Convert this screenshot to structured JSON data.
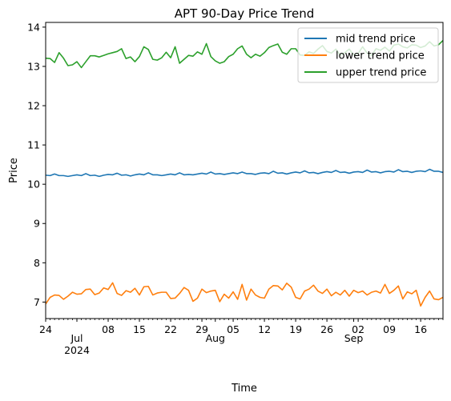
{
  "chart_data": {
    "type": "line",
    "title": "APT 90-Day Price Trend",
    "xlabel": "Time",
    "ylabel": "Price",
    "x_range": [
      "2024-06-24",
      "2024-09-21"
    ],
    "ylim": [
      6.58,
      14.12
    ],
    "grid": false,
    "legend_position": "top-right",
    "y_ticks": [
      7,
      8,
      9,
      10,
      11,
      12,
      13,
      14
    ],
    "x_ticks": [
      {
        "date": "2024-06-24",
        "label": "24",
        "sublabel": ""
      },
      {
        "date": "2024-07-01",
        "label": "",
        "sublabel": "Jul\n2024"
      },
      {
        "date": "2024-07-08",
        "label": "08",
        "sublabel": ""
      },
      {
        "date": "2024-07-15",
        "label": "15",
        "sublabel": ""
      },
      {
        "date": "2024-07-22",
        "label": "22",
        "sublabel": ""
      },
      {
        "date": "2024-07-29",
        "label": "29",
        "sublabel": ""
      },
      {
        "date": "2024-08-01",
        "label": "",
        "sublabel": "Aug"
      },
      {
        "date": "2024-08-05",
        "label": "05",
        "sublabel": ""
      },
      {
        "date": "2024-08-12",
        "label": "12",
        "sublabel": ""
      },
      {
        "date": "2024-08-19",
        "label": "19",
        "sublabel": ""
      },
      {
        "date": "2024-08-26",
        "label": "26",
        "sublabel": ""
      },
      {
        "date": "2024-09-01",
        "label": "",
        "sublabel": "Sep"
      },
      {
        "date": "2024-09-02",
        "label": "02",
        "sublabel": ""
      },
      {
        "date": "2024-09-09",
        "label": "09",
        "sublabel": ""
      },
      {
        "date": "2024-09-16",
        "label": "16",
        "sublabel": ""
      }
    ],
    "start_date": "2024-06-24",
    "series": [
      {
        "name": "mid trend price",
        "color": "#1f77b4",
        "values": [
          10.23,
          10.22,
          10.26,
          10.22,
          10.22,
          10.2,
          10.22,
          10.24,
          10.22,
          10.27,
          10.22,
          10.23,
          10.2,
          10.23,
          10.25,
          10.24,
          10.28,
          10.23,
          10.24,
          10.21,
          10.24,
          10.26,
          10.24,
          10.29,
          10.24,
          10.24,
          10.22,
          10.24,
          10.26,
          10.24,
          10.29,
          10.24,
          10.25,
          10.24,
          10.26,
          10.28,
          10.26,
          10.31,
          10.26,
          10.27,
          10.25,
          10.27,
          10.29,
          10.27,
          10.31,
          10.27,
          10.27,
          10.25,
          10.28,
          10.29,
          10.27,
          10.33,
          10.28,
          10.29,
          10.26,
          10.29,
          10.31,
          10.29,
          10.34,
          10.29,
          10.3,
          10.27,
          10.3,
          10.32,
          10.3,
          10.35,
          10.3,
          10.31,
          10.28,
          10.31,
          10.32,
          10.3,
          10.36,
          10.31,
          10.32,
          10.29,
          10.32,
          10.33,
          10.31,
          10.37,
          10.32,
          10.33,
          10.3,
          10.33,
          10.34,
          10.32,
          10.38,
          10.33,
          10.33,
          10.3
        ]
      },
      {
        "name": "lower trend price",
        "color": "#ff7f0e",
        "values": [
          6.95,
          7.12,
          7.18,
          7.17,
          7.07,
          7.15,
          7.25,
          7.2,
          7.21,
          7.32,
          7.33,
          7.19,
          7.23,
          7.36,
          7.32,
          7.49,
          7.22,
          7.17,
          7.29,
          7.25,
          7.35,
          7.18,
          7.39,
          7.4,
          7.18,
          7.23,
          7.25,
          7.25,
          7.09,
          7.1,
          7.22,
          7.37,
          7.3,
          7.02,
          7.1,
          7.33,
          7.24,
          7.28,
          7.3,
          7.01,
          7.2,
          7.1,
          7.26,
          7.07,
          7.45,
          7.05,
          7.33,
          7.18,
          7.12,
          7.1,
          7.33,
          7.42,
          7.41,
          7.31,
          7.48,
          7.38,
          7.12,
          7.08,
          7.28,
          7.33,
          7.43,
          7.28,
          7.22,
          7.33,
          7.16,
          7.25,
          7.18,
          7.3,
          7.15,
          7.3,
          7.24,
          7.28,
          7.18,
          7.25,
          7.28,
          7.23,
          7.45,
          7.22,
          7.3,
          7.41,
          7.08,
          7.26,
          7.21,
          7.3,
          6.9,
          7.12,
          7.28,
          7.08,
          7.06,
          7.12
        ]
      },
      {
        "name": "upper trend price",
        "color": "#2ca02c",
        "values": [
          13.21,
          13.2,
          13.1,
          13.35,
          13.21,
          13.02,
          13.04,
          13.12,
          12.97,
          13.12,
          13.27,
          13.27,
          13.24,
          13.28,
          13.32,
          13.35,
          13.38,
          13.45,
          13.2,
          13.24,
          13.12,
          13.25,
          13.5,
          13.43,
          13.18,
          13.16,
          13.22,
          13.36,
          13.22,
          13.5,
          13.08,
          13.18,
          13.28,
          13.26,
          13.37,
          13.31,
          13.58,
          13.25,
          13.14,
          13.08,
          13.12,
          13.25,
          13.31,
          13.45,
          13.52,
          13.31,
          13.22,
          13.31,
          13.26,
          13.35,
          13.48,
          13.53,
          13.57,
          13.36,
          13.31,
          13.45,
          13.45,
          13.29,
          13.28,
          13.37,
          13.33,
          13.44,
          13.53,
          13.38,
          13.34,
          13.44,
          13.28,
          13.35,
          13.44,
          13.29,
          13.33,
          13.5,
          13.34,
          13.28,
          13.45,
          13.41,
          13.49,
          13.39,
          13.54,
          13.57,
          13.5,
          13.47,
          13.55,
          13.54,
          13.48,
          13.52,
          13.63,
          13.52,
          13.55,
          13.66
        ]
      }
    ]
  }
}
